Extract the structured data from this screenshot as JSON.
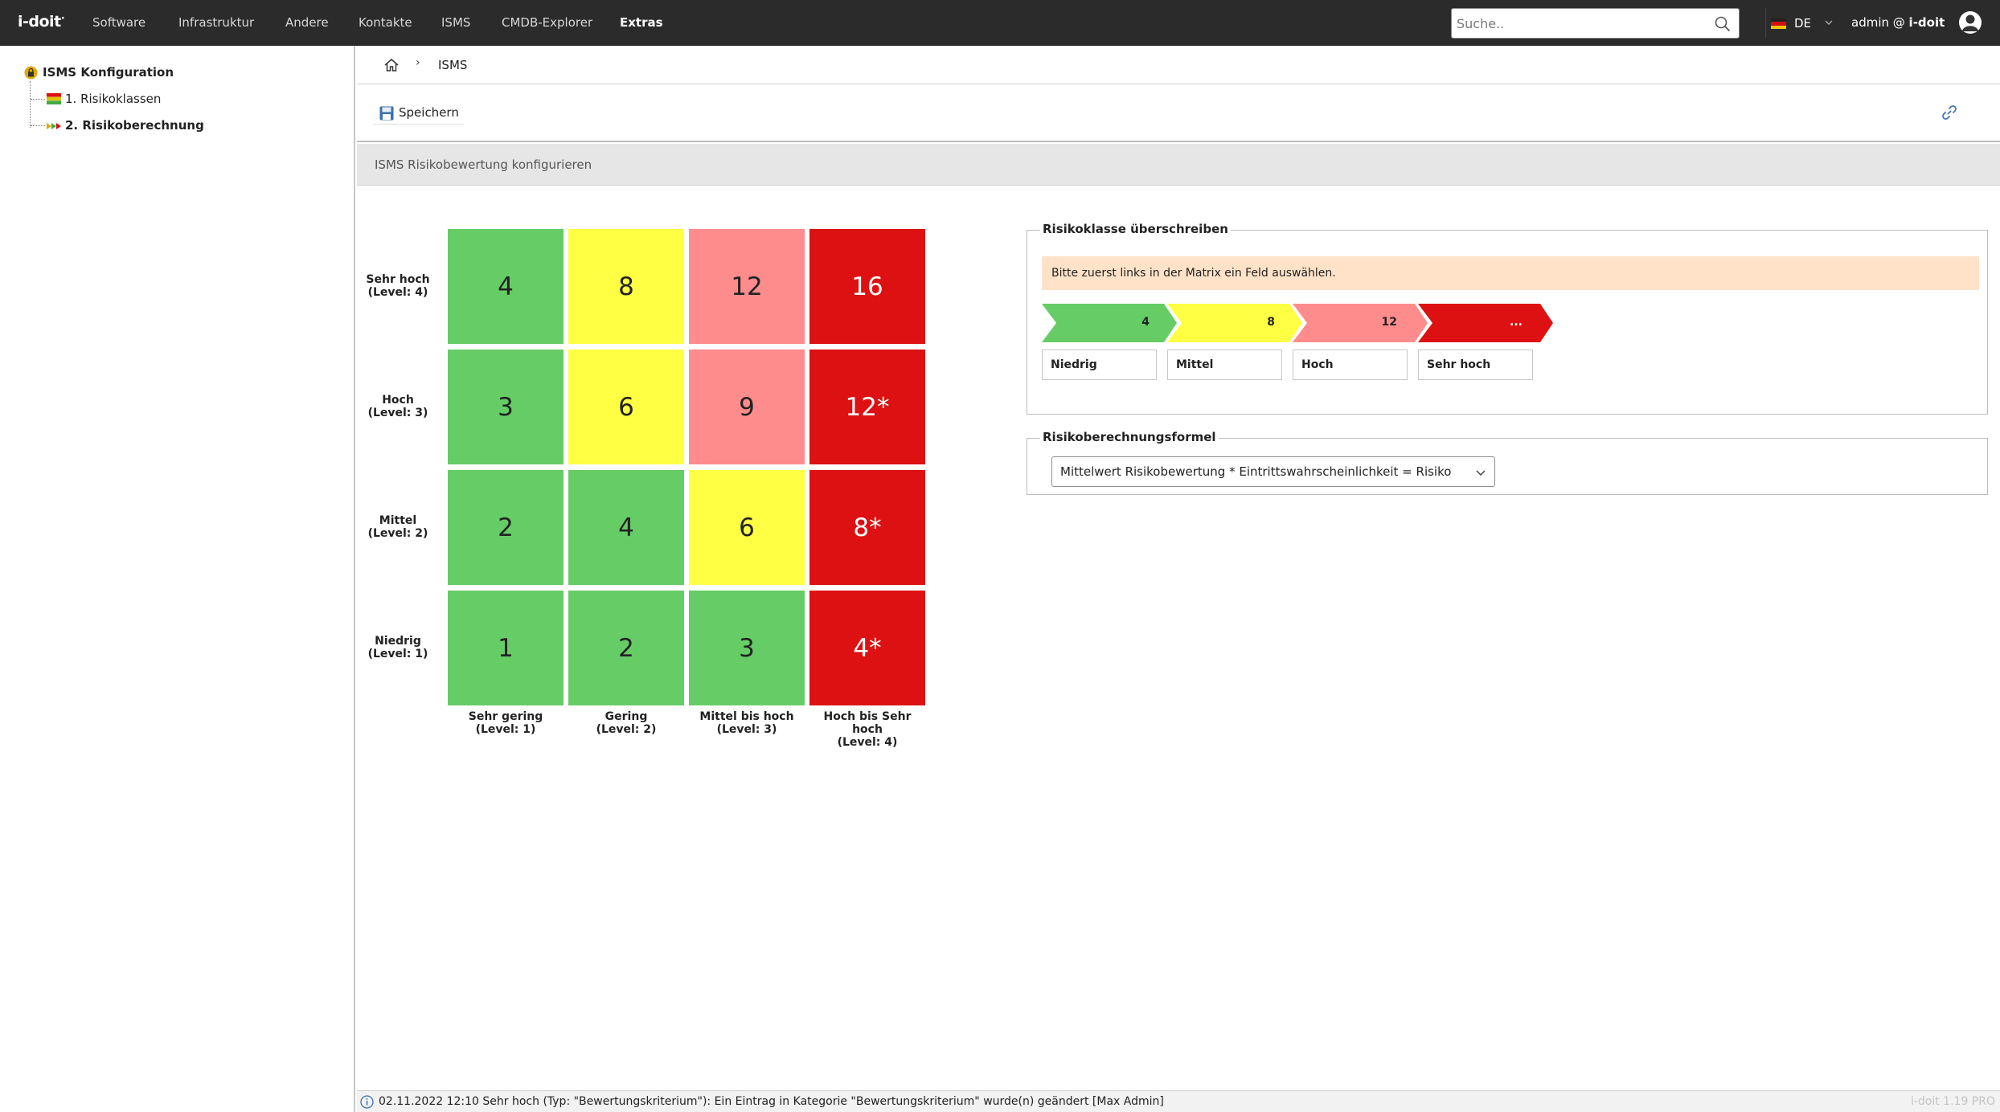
{
  "nav": {
    "logo": "i-doit",
    "items": [
      "Software",
      "Infrastruktur",
      "Andere",
      "Kontakte",
      "ISMS",
      "CMDB-Explorer",
      "Extras"
    ],
    "active": "Extras",
    "search_placeholder": "Suche..",
    "language": "DE",
    "user_prefix": "admin @ ",
    "user_tenant": "i-doit"
  },
  "sidebar": {
    "root": "ISMS Konfiguration",
    "items": [
      {
        "label": "1. Risikoklassen",
        "bold": false
      },
      {
        "label": "2. Risikoberechnung",
        "bold": true
      }
    ]
  },
  "breadcrumb": {
    "sep": "›",
    "current": "ISMS"
  },
  "toolbar": {
    "save_label": "Speichern"
  },
  "subheader": {
    "title": "ISMS Risikobewertung konfigurieren"
  },
  "matrix": {
    "rows": [
      {
        "label": [
          "Sehr hoch",
          "(Level: 4)"
        ],
        "cells": [
          {
            "v": "4",
            "c": "green"
          },
          {
            "v": "8",
            "c": "yellow"
          },
          {
            "v": "12",
            "c": "pink"
          },
          {
            "v": "16",
            "c": "red"
          }
        ]
      },
      {
        "label": [
          "Hoch",
          "(Level: 3)"
        ],
        "cells": [
          {
            "v": "3",
            "c": "green"
          },
          {
            "v": "6",
            "c": "yellow"
          },
          {
            "v": "9",
            "c": "pink"
          },
          {
            "v": "12*",
            "c": "red"
          }
        ]
      },
      {
        "label": [
          "Mittel",
          "(Level: 2)"
        ],
        "cells": [
          {
            "v": "2",
            "c": "green"
          },
          {
            "v": "4",
            "c": "green"
          },
          {
            "v": "6",
            "c": "yellow"
          },
          {
            "v": "8*",
            "c": "red"
          }
        ]
      },
      {
        "label": [
          "Niedrig",
          "(Level: 1)"
        ],
        "cells": [
          {
            "v": "1",
            "c": "green"
          },
          {
            "v": "2",
            "c": "green"
          },
          {
            "v": "3",
            "c": "green"
          },
          {
            "v": "4*",
            "c": "red"
          }
        ]
      }
    ],
    "columns": [
      [
        "Sehr gering",
        "(Level: 1)"
      ],
      [
        "Gering",
        "(Level: 2)"
      ],
      [
        "Mittel bis hoch",
        "(Level: 3)"
      ],
      [
        "Hoch bis Sehr",
        "hoch",
        "(Level: 4)"
      ]
    ]
  },
  "override": {
    "legend": "Risikoklasse überschreiben",
    "warning": "Bitte zuerst links in der Matrix ein Feld auswählen.",
    "classes": [
      {
        "value": "4",
        "name": "Niedrig",
        "color": "#66cc66",
        "text": "#222222"
      },
      {
        "value": "8",
        "name": "Mittel",
        "color": "#ffff44",
        "text": "#222222"
      },
      {
        "value": "12",
        "name": "Hoch",
        "color": "#ff8c8c",
        "text": "#222222"
      },
      {
        "value": "...",
        "name": "Sehr hoch",
        "color": "#dd1111",
        "text": "#ffffff"
      }
    ]
  },
  "formula": {
    "legend": "Risikoberechnungsformel",
    "selected": "Mittelwert Risikobewertung * Eintrittswahrscheinlichkeit = Risiko"
  },
  "status": {
    "message": "02.11.2022 12:10 Sehr hoch (Typ: \"Bewertungskriterium\"): Ein Eintrag in Kategorie \"Bewertungskriterium\" wurde(n) geändert [Max Admin]",
    "version": "i-doit 1.19 PRO"
  }
}
